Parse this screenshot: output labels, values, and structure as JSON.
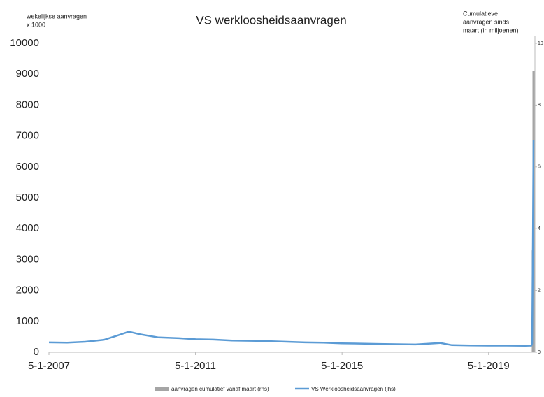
{
  "chart_data": {
    "type": "line",
    "title": "VS werkloosheidsaanvragen",
    "y_label": [
      "wekelijkse aanvragen",
      "x 1000"
    ],
    "y2_label": [
      "Cumulatieve",
      "aanvragen sinds",
      "maart (in miljoenen)"
    ],
    "xlim": [
      "5-1-2007",
      "11-4-2020"
    ],
    "xticks": [
      "5-1-2007",
      "5-1-2011",
      "5-1-2015",
      "5-1-2019"
    ],
    "ylim": [
      0,
      10000
    ],
    "yticks": [
      0,
      1000,
      2000,
      3000,
      4000,
      5000,
      6000,
      7000,
      8000,
      9000,
      10000
    ],
    "y2lim": [
      0,
      10
    ],
    "y2ticks": [
      0,
      2,
      4,
      6,
      8,
      10
    ],
    "series": [
      {
        "name": "aanvragen cumulatief vanaf maart (rhs)",
        "color": "#a5a5a5",
        "kind": "bar",
        "axis": "y2",
        "x": [
          "21-3-2020",
          "28-3-2020"
        ],
        "values": [
          3.3,
          9.1
        ]
      },
      {
        "name": "VS Werkloosheidsaanvragen (lhs)",
        "color": "#5b9bd5",
        "kind": "line",
        "x": [
          "5-1-2007",
          "6-7-2007",
          "4-1-2008",
          "4-7-2008",
          "7-11-2008",
          "6-3-2009",
          "3-4-2009",
          "3-7-2009",
          "2-1-2010",
          "2-7-2010",
          "7-1-2011",
          "1-7-2011",
          "6-1-2012",
          "6-7-2012",
          "4-1-2013",
          "5-7-2013",
          "3-1-2014",
          "4-7-2014",
          "2-1-2015",
          "3-7-2015",
          "8-1-2016",
          "1-7-2016",
          "6-1-2017",
          "8-9-2017",
          "5-1-2018",
          "6-7-2018",
          "4-1-2019",
          "5-7-2019",
          "3-1-2020",
          "7-3-2020",
          "14-3-2020",
          "21-3-2020",
          "28-3-2020"
        ],
        "values": [
          320,
          310,
          340,
          400,
          530,
          660,
          650,
          580,
          480,
          460,
          420,
          410,
          380,
          370,
          360,
          340,
          320,
          310,
          290,
          280,
          270,
          260,
          250,
          300,
          230,
          220,
          215,
          215,
          210,
          215,
          282,
          3307,
          6867
        ]
      }
    ]
  }
}
